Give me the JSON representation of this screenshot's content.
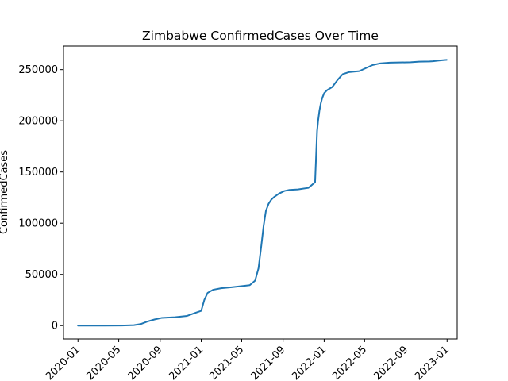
{
  "chart_data": {
    "type": "line",
    "title": "Zimbabwe  ConfirmedCases Over Time",
    "xlabel": "",
    "ylabel": "ConfirmedCases",
    "xlim": [
      "2019-11-19",
      "2023-01-31"
    ],
    "ylim": [
      -13000,
      273000
    ],
    "grid": false,
    "x_ticks": [
      "2020-01",
      "2020-05",
      "2020-09",
      "2021-01",
      "2021-05",
      "2021-09",
      "2022-01",
      "2022-05",
      "2022-09",
      "2023-01"
    ],
    "y_ticks": [
      0,
      50000,
      100000,
      150000,
      200000,
      250000
    ],
    "y_tick_labels": [
      "0",
      "50000",
      "100000",
      "150000",
      "200000",
      "250000"
    ],
    "series": [
      {
        "color": "#1f77b4",
        "x": [
          "2020-01-01",
          "2020-03-20",
          "2020-05-10",
          "2020-06-15",
          "2020-07-05",
          "2020-07-25",
          "2020-08-15",
          "2020-09-05",
          "2020-10-15",
          "2020-11-20",
          "2020-12-15",
          "2021-01-01",
          "2021-01-10",
          "2021-01-20",
          "2021-02-05",
          "2021-03-01",
          "2021-04-01",
          "2021-04-30",
          "2021-05-25",
          "2021-06-10",
          "2021-06-20",
          "2021-06-28",
          "2021-07-05",
          "2021-07-12",
          "2021-07-20",
          "2021-07-28",
          "2021-08-05",
          "2021-08-20",
          "2021-09-05",
          "2021-09-20",
          "2021-10-15",
          "2021-11-15",
          "2021-12-05",
          "2021-12-08",
          "2021-12-11",
          "2021-12-14",
          "2021-12-18",
          "2021-12-22",
          "2021-12-26",
          "2022-01-01",
          "2022-01-10",
          "2022-01-25",
          "2022-02-10",
          "2022-02-25",
          "2022-03-15",
          "2022-04-15",
          "2022-05-05",
          "2022-05-25",
          "2022-06-15",
          "2022-07-15",
          "2022-09-15",
          "2022-10-10",
          "2022-11-10",
          "2022-11-20",
          "2022-12-05",
          "2022-12-20",
          "2022-12-31"
        ],
        "y": [
          0,
          0,
          100,
          500,
          1500,
          4000,
          6000,
          7500,
          8200,
          9500,
          12500,
          14500,
          25000,
          32000,
          35000,
          36500,
          37500,
          38500,
          39500,
          44000,
          56000,
          77000,
          97000,
          112000,
          119000,
          123000,
          125500,
          129000,
          131500,
          132500,
          133000,
          134500,
          140000,
          165000,
          190000,
          200000,
          210000,
          217000,
          222000,
          227000,
          230000,
          233000,
          240000,
          245500,
          247500,
          248500,
          251500,
          254500,
          256000,
          256800,
          257200,
          257800,
          258000,
          258200,
          258800,
          259200,
          259500
        ]
      }
    ]
  }
}
